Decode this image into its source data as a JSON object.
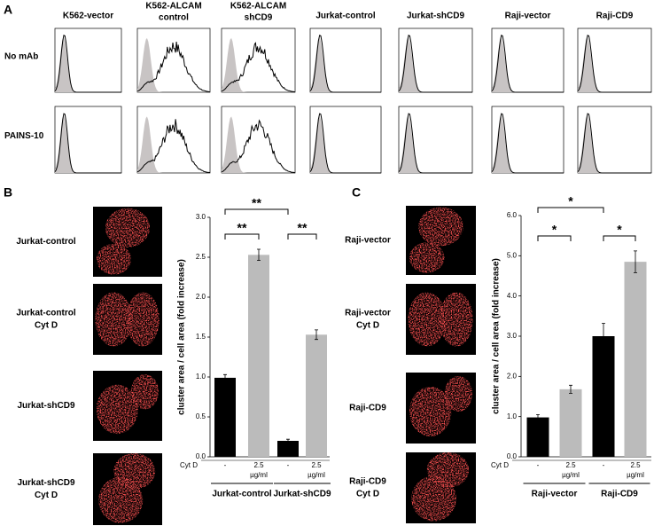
{
  "panel_a": {
    "label": "A",
    "columns": [
      [
        "K562-vector"
      ],
      [
        "K562-ALCAM",
        "control"
      ],
      [
        "K562-ALCAM",
        "shCD9"
      ],
      [
        "Jurkat-control"
      ],
      [
        "Jurkat-shCD9"
      ],
      [
        "Raji-vector"
      ],
      [
        "Raji-CD9"
      ]
    ],
    "rows": [
      "No mAb",
      "PAINS-10"
    ]
  },
  "panel_b": {
    "label": "B",
    "images": [
      [
        "Jurkat-control"
      ],
      [
        "Jurkat-control",
        "Cyt D"
      ],
      [
        "Jurkat-shCD9"
      ],
      [
        "Jurkat-shCD9",
        "Cyt D"
      ]
    ]
  },
  "panel_c": {
    "label": "C",
    "images": [
      [
        "Raji-vector"
      ],
      [
        "Raji-vector",
        "Cyt D"
      ],
      [
        "Raji-CD9"
      ],
      [
        "Raji-CD9",
        "Cyt D"
      ]
    ]
  },
  "chart_data": [
    {
      "type": "bar",
      "y_label": "cluster area / cell area (fold increase)",
      "treatment_label": "Cyt D",
      "categories": [
        [
          "-"
        ],
        [
          "2.5",
          "µg/ml"
        ],
        [
          "-"
        ],
        [
          "2.5",
          "µg/ml"
        ]
      ],
      "groups": [
        "Jurkat-control",
        "Jurkat-shCD9"
      ],
      "values": [
        0.99,
        2.53,
        0.2,
        1.53
      ],
      "errors": [
        0.04,
        0.07,
        0.02,
        0.06
      ],
      "colors": [
        "#000000",
        "#bbbbbb",
        "#000000",
        "#bbbbbb"
      ],
      "significance": [
        "**",
        "**",
        "**"
      ],
      "ylim": [
        0,
        3.0
      ],
      "yticks": [
        {
          "value": 0,
          "label": "0.0"
        },
        0.5,
        {
          "value": 1,
          "label": "1.0"
        },
        1.5,
        {
          "value": 2,
          "label": "2.0"
        },
        2.5,
        {
          "value": 3,
          "label": "3.0"
        }
      ]
    },
    {
      "type": "bar",
      "y_label": "cluster area / cell area (fold increase)",
      "treatment_label": "Cyt D",
      "categories": [
        [
          "-"
        ],
        [
          "2.5",
          "µg/ml"
        ],
        [
          "-"
        ],
        [
          "2.5",
          "µg/ml"
        ]
      ],
      "groups": [
        "Raji-vector",
        "Raji-CD9"
      ],
      "values": [
        0.98,
        1.68,
        3.0,
        4.85
      ],
      "errors": [
        0.07,
        0.1,
        0.32,
        0.27
      ],
      "colors": [
        "#000000",
        "#bbbbbb",
        "#000000",
        "#bbbbbb"
      ],
      "significance": [
        "*",
        "*",
        "*"
      ],
      "ylim": [
        0,
        6.0
      ],
      "yticks": [
        {
          "value": 0,
          "label": "0.0"
        },
        {
          "value": 1,
          "label": "1.0"
        },
        {
          "value": 2,
          "label": "2.0"
        },
        {
          "value": 3,
          "label": "3.0"
        },
        {
          "value": 4,
          "label": "4.0"
        },
        {
          "value": 5,
          "label": "5.0"
        },
        {
          "value": 6,
          "label": "6.0"
        }
      ]
    }
  ]
}
